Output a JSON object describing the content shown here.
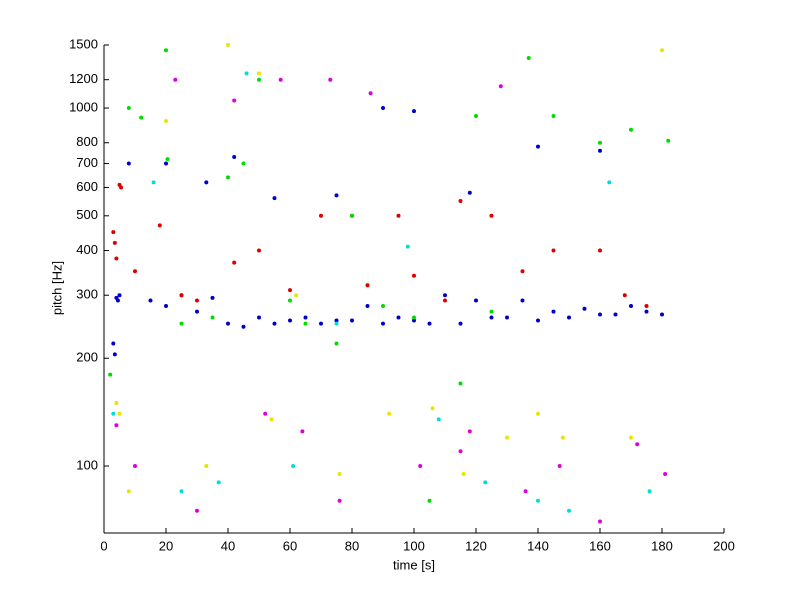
{
  "chart_data": {
    "type": "scatter",
    "xlabel": "time [s]",
    "ylabel": "pitch [Hz]",
    "xlim": [
      0,
      200
    ],
    "xticks": [
      0,
      20,
      40,
      60,
      80,
      100,
      120,
      140,
      160,
      180,
      200
    ],
    "ylim": [
      65,
      1500
    ],
    "yscale": "log",
    "yticks": [
      100,
      200,
      300,
      400,
      500,
      600,
      700,
      800,
      1000,
      1200,
      1500
    ],
    "series": [
      {
        "color": "#0000cc",
        "x": [
          3,
          3.5,
          4,
          4.5,
          5,
          15,
          20,
          25,
          30,
          35,
          40,
          45,
          50,
          55,
          60,
          65,
          70,
          75,
          80,
          85,
          90,
          95,
          100,
          105,
          110,
          115,
          120,
          125,
          130,
          135,
          140,
          145,
          150,
          155,
          160,
          165,
          170,
          175,
          180,
          8,
          20,
          33,
          42,
          55,
          75,
          90,
          100,
          118,
          140,
          160
        ],
        "values": [
          220,
          205,
          295,
          290,
          300,
          290,
          280,
          300,
          270,
          295,
          250,
          245,
          260,
          250,
          255,
          260,
          250,
          255,
          255,
          280,
          250,
          260,
          255,
          250,
          300,
          250,
          290,
          260,
          260,
          290,
          255,
          270,
          260,
          275,
          265,
          265,
          280,
          270,
          265,
          700,
          700,
          620,
          730,
          560,
          570,
          1000,
          980,
          580,
          780,
          760
        ]
      },
      {
        "color": "#dd0000",
        "x": [
          3,
          3.5,
          4,
          5,
          5.5,
          10,
          18,
          25,
          30,
          42,
          50,
          60,
          70,
          80,
          85,
          95,
          100,
          110,
          115,
          125,
          135,
          145,
          160,
          168,
          175
        ],
        "values": [
          450,
          420,
          380,
          610,
          600,
          350,
          470,
          300,
          290,
          370,
          400,
          310,
          500,
          500,
          320,
          500,
          340,
          290,
          550,
          500,
          350,
          400,
          400,
          300,
          280
        ]
      },
      {
        "color": "#00dd00",
        "x": [
          2,
          8,
          12,
          20,
          20.5,
          25,
          35,
          40,
          45,
          50,
          60,
          65,
          75,
          80,
          90,
          100,
          105,
          115,
          120,
          125,
          137,
          145,
          160,
          170,
          182
        ],
        "values": [
          180,
          1000,
          940,
          1450,
          720,
          250,
          260,
          640,
          700,
          1200,
          290,
          250,
          220,
          500,
          280,
          260,
          80,
          170,
          950,
          270,
          1380,
          950,
          800,
          870,
          810
        ]
      },
      {
        "color": "#e6e600",
        "x": [
          4,
          5,
          8,
          20,
          33,
          40,
          50,
          54,
          62,
          76,
          92,
          106,
          116,
          130,
          140,
          148,
          170,
          180
        ],
        "values": [
          150,
          140,
          85,
          920,
          100,
          1500,
          1250,
          135,
          300,
          95,
          140,
          145,
          95,
          120,
          140,
          120,
          120,
          1450
        ]
      },
      {
        "color": "#dd00dd",
        "x": [
          4,
          10,
          23,
          30,
          42,
          52,
          57,
          64,
          73,
          76,
          86,
          102,
          115,
          118,
          128,
          136,
          147,
          160,
          172,
          181
        ],
        "values": [
          130,
          100,
          1200,
          75,
          1050,
          140,
          1200,
          125,
          1200,
          80,
          1100,
          100,
          110,
          125,
          1150,
          85,
          100,
          70,
          115,
          95
        ]
      },
      {
        "color": "#00dddd",
        "x": [
          3,
          16,
          25,
          37,
          46,
          61,
          75,
          98,
          108,
          123,
          140,
          150,
          163,
          176
        ],
        "values": [
          140,
          620,
          85,
          90,
          1250,
          100,
          250,
          410,
          135,
          90,
          80,
          75,
          620,
          85
        ]
      }
    ]
  }
}
